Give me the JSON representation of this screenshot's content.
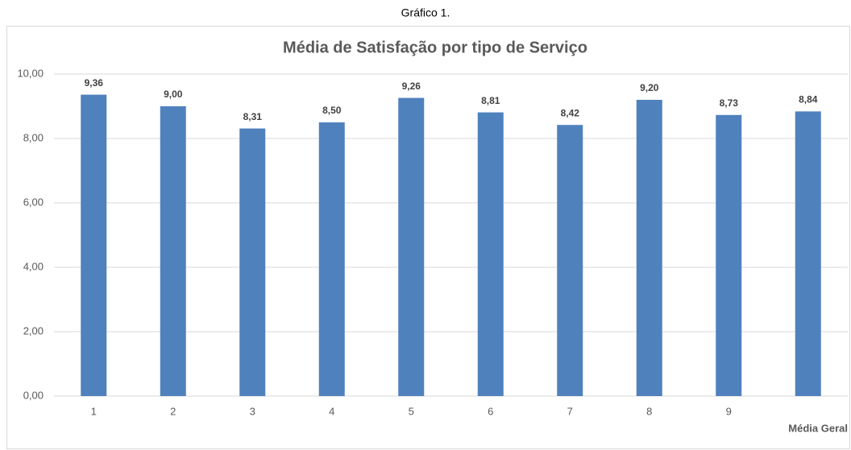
{
  "chart_data": {
    "type": "bar",
    "caption": "Gráfico 1.",
    "title": "Média de Satisfação por tipo de Serviço",
    "categories": [
      "1",
      "2",
      "3",
      "4",
      "5",
      "6",
      "7",
      "8",
      "9",
      "Média Geral"
    ],
    "values": [
      9.36,
      9.0,
      8.31,
      8.5,
      9.26,
      8.81,
      8.42,
      9.2,
      8.73,
      8.84
    ],
    "value_labels": [
      "9,36",
      "9,00",
      "8,31",
      "8,50",
      "9,26",
      "8,81",
      "8,42",
      "9,20",
      "8,73",
      "8,84"
    ],
    "color": "#4f81bd",
    "ylim": [
      0,
      10
    ],
    "yticks": [
      {
        "value": 0,
        "label": "0,00"
      },
      {
        "value": 2,
        "label": "2,00"
      },
      {
        "value": 4,
        "label": "4,00"
      },
      {
        "value": 6,
        "label": "6,00"
      },
      {
        "value": 8,
        "label": "8,00"
      },
      {
        "value": 10,
        "label": "10,00"
      }
    ],
    "grid": true
  }
}
